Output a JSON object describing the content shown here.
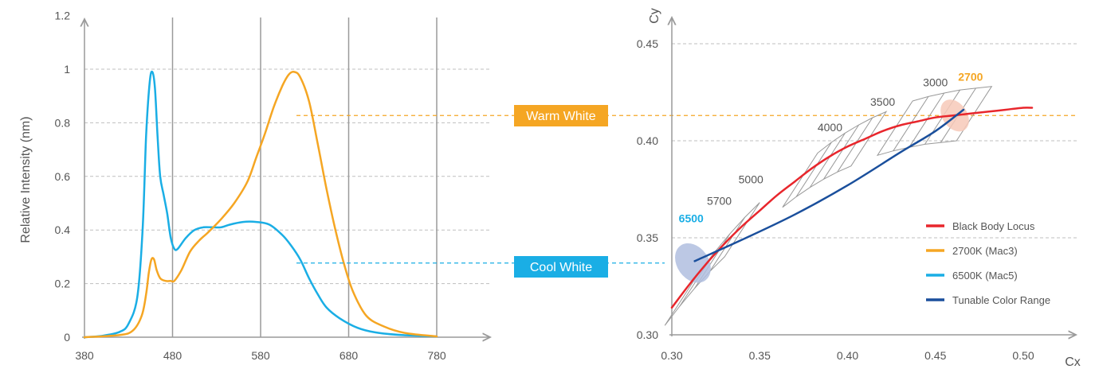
{
  "chart_data": [
    {
      "type": "line",
      "ylabel": "Relative Intensity (nm)",
      "xlabel": "",
      "x_ticks": [
        "380",
        "480",
        "580",
        "680",
        "780"
      ],
      "y_ticks": [
        "0",
        "0.2",
        "0.4",
        "0.6",
        "0.8",
        "1",
        "1.2"
      ],
      "xlim": [
        380,
        780
      ],
      "ylim": [
        0,
        1.2
      ],
      "series": [
        {
          "name": "Cool White",
          "color": "#1aaee5",
          "points": [
            [
              380,
              0
            ],
            [
              400,
              0.005
            ],
            [
              420,
              0.02
            ],
            [
              430,
              0.05
            ],
            [
              440,
              0.15
            ],
            [
              446,
              0.4
            ],
            [
              450,
              0.75
            ],
            [
              454,
              0.95
            ],
            [
              457,
              0.99
            ],
            [
              460,
              0.93
            ],
            [
              463,
              0.75
            ],
            [
              466,
              0.6
            ],
            [
              470,
              0.53
            ],
            [
              474,
              0.46
            ],
            [
              478,
              0.37
            ],
            [
              482,
              0.33
            ],
            [
              486,
              0.33
            ],
            [
              495,
              0.37
            ],
            [
              505,
              0.4
            ],
            [
              515,
              0.41
            ],
            [
              525,
              0.41
            ],
            [
              535,
              0.41
            ],
            [
              545,
              0.42
            ],
            [
              560,
              0.43
            ],
            [
              575,
              0.43
            ],
            [
              590,
              0.42
            ],
            [
              605,
              0.38
            ],
            [
              615,
              0.34
            ],
            [
              625,
              0.29
            ],
            [
              635,
              0.22
            ],
            [
              645,
              0.16
            ],
            [
              655,
              0.11
            ],
            [
              670,
              0.07
            ],
            [
              690,
              0.035
            ],
            [
              710,
              0.018
            ],
            [
              740,
              0.008
            ],
            [
              780,
              0.003
            ]
          ]
        },
        {
          "name": "Warm White",
          "color": "#f5a623",
          "points": [
            [
              380,
              0
            ],
            [
              420,
              0.008
            ],
            [
              435,
              0.025
            ],
            [
              445,
              0.08
            ],
            [
              450,
              0.16
            ],
            [
              453,
              0.24
            ],
            [
              456,
              0.29
            ],
            [
              459,
              0.29
            ],
            [
              462,
              0.25
            ],
            [
              466,
              0.22
            ],
            [
              472,
              0.21
            ],
            [
              478,
              0.21
            ],
            [
              482,
              0.21
            ],
            [
              490,
              0.25
            ],
            [
              500,
              0.32
            ],
            [
              510,
              0.36
            ],
            [
              520,
              0.39
            ],
            [
              535,
              0.44
            ],
            [
              550,
              0.5
            ],
            [
              565,
              0.58
            ],
            [
              575,
              0.67
            ],
            [
              585,
              0.76
            ],
            [
              595,
              0.86
            ],
            [
              605,
              0.94
            ],
            [
              612,
              0.98
            ],
            [
              618,
              0.99
            ],
            [
              625,
              0.97
            ],
            [
              635,
              0.88
            ],
            [
              645,
              0.72
            ],
            [
              655,
              0.55
            ],
            [
              665,
              0.4
            ],
            [
              675,
              0.27
            ],
            [
              685,
              0.17
            ],
            [
              700,
              0.08
            ],
            [
              720,
              0.04
            ],
            [
              745,
              0.015
            ],
            [
              780,
              0.003
            ]
          ]
        }
      ],
      "grid": "solid vertical lines at x ticks, dashed horizontal lines at y ticks"
    },
    {
      "type": "line",
      "xlabel": "Cx",
      "ylabel": "Cy",
      "x_ticks": [
        "0.30",
        "0.35",
        "0.40",
        "0.45",
        "0.50"
      ],
      "y_ticks": [
        "0.30",
        "0.35",
        "0.40",
        "0.45"
      ],
      "xlim": [
        0.3,
        0.52
      ],
      "ylim": [
        0.3,
        0.46
      ],
      "series": [
        {
          "name": "Black Body Locus",
          "color": "#e8262c",
          "points": [
            [
              0.3,
              0.314
            ],
            [
              0.31,
              0.326
            ],
            [
              0.32,
              0.337
            ],
            [
              0.33,
              0.347
            ],
            [
              0.34,
              0.356
            ],
            [
              0.35,
              0.364
            ],
            [
              0.36,
              0.372
            ],
            [
              0.37,
              0.379
            ],
            [
              0.38,
              0.386
            ],
            [
              0.39,
              0.392
            ],
            [
              0.4,
              0.397
            ],
            [
              0.41,
              0.401
            ],
            [
              0.42,
              0.405
            ],
            [
              0.43,
              0.408
            ],
            [
              0.44,
              0.41
            ],
            [
              0.45,
              0.412
            ],
            [
              0.46,
              0.413
            ],
            [
              0.47,
              0.414
            ],
            [
              0.48,
              0.415
            ],
            [
              0.49,
              0.416
            ],
            [
              0.5,
              0.417
            ],
            [
              0.505,
              0.417
            ]
          ]
        },
        {
          "name": "Tunable Color Range",
          "color": "#1a4f9c",
          "points": [
            [
              0.313,
              0.338
            ],
            [
              0.34,
              0.349
            ],
            [
              0.37,
              0.362
            ],
            [
              0.4,
              0.377
            ],
            [
              0.43,
              0.394
            ],
            [
              0.45,
              0.405
            ],
            [
              0.466,
              0.416
            ]
          ]
        }
      ],
      "ellipses": [
        {
          "name": "6500K (Mac5)",
          "color": "#b0bedf",
          "center": [
            0.312,
            0.337
          ],
          "rx": 0.009,
          "ry": 0.011
        },
        {
          "name": "2700K (Mac3)",
          "color": "#f7c9b8",
          "center": [
            0.461,
            0.413
          ],
          "rx": 0.007,
          "ry": 0.009
        }
      ],
      "cct_labels": [
        {
          "text": "6500",
          "at": [
            0.311,
            0.358
          ],
          "highlight": "#1aaee5"
        },
        {
          "text": "5700",
          "at": [
            0.327,
            0.367
          ]
        },
        {
          "text": "5000",
          "at": [
            0.345,
            0.378
          ]
        },
        {
          "text": "4000",
          "at": [
            0.39,
            0.405
          ]
        },
        {
          "text": "3500",
          "at": [
            0.42,
            0.418
          ]
        },
        {
          "text": "3000",
          "at": [
            0.45,
            0.428
          ]
        },
        {
          "text": "2700",
          "at": [
            0.47,
            0.431
          ],
          "highlight": "#f5a623"
        }
      ],
      "legend": {
        "placement": "bottom-right",
        "items": [
          {
            "label": "Black Body Locus",
            "color": "#e8262c"
          },
          {
            "label": "2700K (Mac3)",
            "color": "#f5a623"
          },
          {
            "label": "6500K (Mac5)",
            "color": "#1aaee5"
          },
          {
            "label": "Tunable Color Range",
            "color": "#1a4f9c"
          }
        ]
      },
      "grid": "dashed horizontal lines at y ticks"
    }
  ],
  "callouts": [
    {
      "label": "Warm White",
      "color": "#f5a623",
      "cy_value": 0.413
    },
    {
      "label": "Cool White",
      "color": "#1aaee5",
      "cy_value": 0.337
    }
  ],
  "colors": {
    "axis": "#9a9a9a",
    "grid": "#bfbfbf",
    "macadam_box": "#999999"
  }
}
